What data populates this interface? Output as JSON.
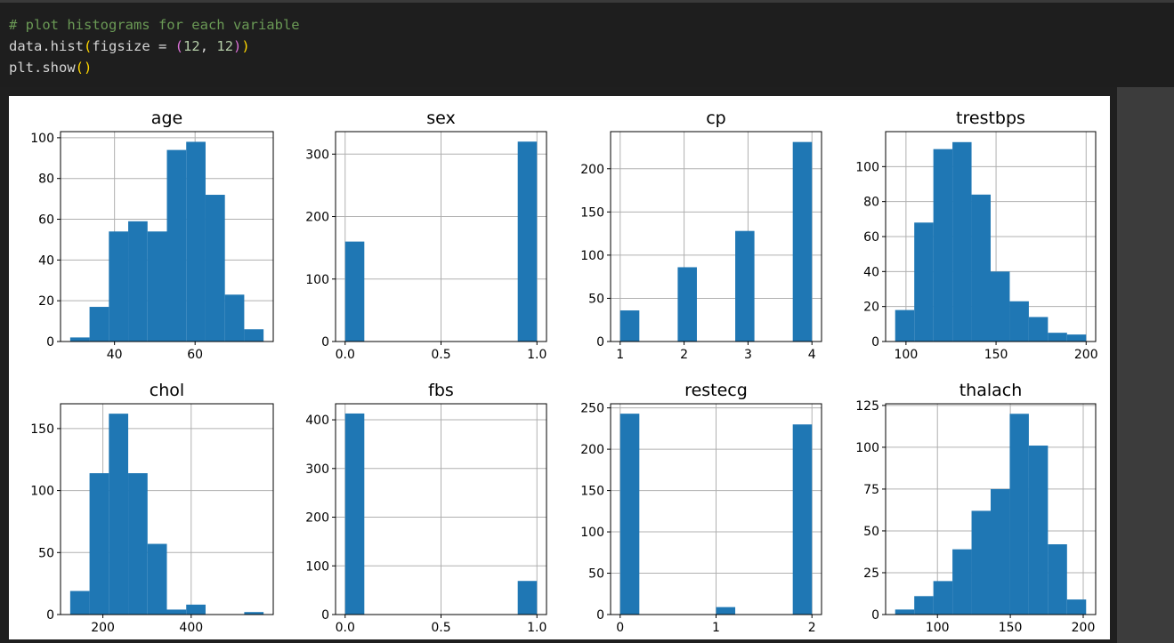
{
  "code": {
    "comment": "# plot histograms for each variable",
    "line2_prefix": "data.hist",
    "line2_open1": "(",
    "line2_mid": "figsize = ",
    "line2_open2": "(",
    "line2_a": "12",
    "line2_sep": ", ",
    "line2_b": "12",
    "line2_close2": ")",
    "line2_close1": ")",
    "line3_prefix": "plt.show",
    "line3_parens": "()"
  },
  "colors": {
    "bar": "#1f77b4",
    "grid": "#b0b0b0",
    "axis": "#000000"
  },
  "chart_data": [
    {
      "type": "bar",
      "title": "age",
      "bin_edges": [
        29,
        33.8,
        38.6,
        43.4,
        48.2,
        53,
        57.8,
        62.6,
        67.4,
        72.2,
        77
      ],
      "counts": [
        2,
        17,
        54,
        59,
        54,
        94,
        98,
        72,
        23,
        6
      ],
      "xlim": [
        26.6,
        79.4
      ],
      "ylim": [
        0,
        103
      ],
      "xticks": [
        40,
        60
      ],
      "xtick_labels": [
        "40",
        "60"
      ],
      "yticks": [
        0,
        20,
        40,
        60,
        80,
        100
      ],
      "ytick_labels": [
        "0",
        "20",
        "40",
        "60",
        "80",
        "100"
      ],
      "grid": true
    },
    {
      "type": "bar",
      "title": "sex",
      "bin_edges": [
        0,
        0.1,
        0.2,
        0.3,
        0.4,
        0.5,
        0.6,
        0.7,
        0.8,
        0.9,
        1.0
      ],
      "counts": [
        160,
        0,
        0,
        0,
        0,
        0,
        0,
        0,
        0,
        320
      ],
      "xlim": [
        -0.05,
        1.05
      ],
      "ylim": [
        0,
        336
      ],
      "xticks": [
        0,
        0.5,
        1
      ],
      "xtick_labels": [
        "0.0",
        "0.5",
        "1.0"
      ],
      "yticks": [
        0,
        100,
        200,
        300
      ],
      "ytick_labels": [
        "0",
        "100",
        "200",
        "300"
      ],
      "grid": true
    },
    {
      "type": "bar",
      "title": "cp",
      "bin_edges": [
        1,
        1.3,
        1.6,
        1.9,
        2.2,
        2.5,
        2.8,
        3.1,
        3.4,
        3.7,
        4.0
      ],
      "counts": [
        36,
        0,
        0,
        86,
        0,
        0,
        128,
        0,
        0,
        231
      ],
      "xlim": [
        0.85,
        4.15
      ],
      "ylim": [
        0,
        243
      ],
      "xticks": [
        1,
        2,
        3,
        4
      ],
      "xtick_labels": [
        "1",
        "2",
        "3",
        "4"
      ],
      "yticks": [
        0,
        50,
        100,
        150,
        200
      ],
      "ytick_labels": [
        "0",
        "50",
        "100",
        "150",
        "200"
      ],
      "grid": true
    },
    {
      "type": "bar",
      "title": "trestbps",
      "bin_edges": [
        94,
        104.6,
        115.2,
        125.8,
        136.4,
        147,
        157.6,
        168.2,
        178.8,
        189.4,
        200
      ],
      "counts": [
        18,
        68,
        110,
        114,
        84,
        40,
        23,
        14,
        5,
        4
      ],
      "xlim": [
        88.7,
        205.3
      ],
      "ylim": [
        0,
        120
      ],
      "xticks": [
        100,
        150,
        200
      ],
      "xtick_labels": [
        "100",
        "150",
        "200"
      ],
      "yticks": [
        0,
        20,
        40,
        60,
        80,
        100
      ],
      "ytick_labels": [
        "0",
        "20",
        "40",
        "60",
        "80",
        "100"
      ],
      "grid": true
    },
    {
      "type": "bar",
      "title": "chol",
      "bin_edges": [
        126,
        169.8,
        213.6,
        257.4,
        301.2,
        345,
        388.8,
        432.6,
        476.4,
        520.2,
        564
      ],
      "counts": [
        19,
        114,
        162,
        114,
        57,
        4,
        8,
        0,
        0,
        2
      ],
      "xlim": [
        104.1,
        585.9
      ],
      "ylim": [
        0,
        170
      ],
      "xticks": [
        200,
        400
      ],
      "xtick_labels": [
        "200",
        "400"
      ],
      "yticks": [
        0,
        50,
        100,
        150
      ],
      "ytick_labels": [
        "0",
        "50",
        "100",
        "150"
      ],
      "grid": true
    },
    {
      "type": "bar",
      "title": "fbs",
      "bin_edges": [
        0,
        0.1,
        0.2,
        0.3,
        0.4,
        0.5,
        0.6,
        0.7,
        0.8,
        0.9,
        1.0
      ],
      "counts": [
        413,
        0,
        0,
        0,
        0,
        0,
        0,
        0,
        0,
        69
      ],
      "xlim": [
        -0.05,
        1.05
      ],
      "ylim": [
        0,
        433
      ],
      "xticks": [
        0,
        0.5,
        1
      ],
      "xtick_labels": [
        "0.0",
        "0.5",
        "1.0"
      ],
      "yticks": [
        0,
        100,
        200,
        300,
        400
      ],
      "ytick_labels": [
        "0",
        "100",
        "200",
        "300",
        "400"
      ],
      "grid": true
    },
    {
      "type": "bar",
      "title": "restecg",
      "bin_edges": [
        0,
        0.2,
        0.4,
        0.6,
        0.8,
        1.0,
        1.2,
        1.4,
        1.6,
        1.8,
        2.0
      ],
      "counts": [
        243,
        0,
        0,
        0,
        0,
        9,
        0,
        0,
        0,
        230
      ],
      "xlim": [
        -0.1,
        2.1
      ],
      "ylim": [
        0,
        255
      ],
      "xticks": [
        0,
        1,
        2
      ],
      "xtick_labels": [
        "0",
        "1",
        "2"
      ],
      "yticks": [
        0,
        50,
        100,
        150,
        200,
        250
      ],
      "ytick_labels": [
        "0",
        "50",
        "100",
        "150",
        "200",
        "250"
      ],
      "grid": true
    },
    {
      "type": "bar",
      "title": "thalach",
      "bin_edges": [
        71,
        84.1,
        97.2,
        110.3,
        123.4,
        136.5,
        149.6,
        162.7,
        175.8,
        188.9,
        202
      ],
      "counts": [
        3,
        11,
        20,
        39,
        62,
        75,
        120,
        101,
        42,
        9
      ],
      "xlim": [
        64.45,
        208.55
      ],
      "ylim": [
        0,
        126
      ],
      "xticks": [
        100,
        150,
        200
      ],
      "xtick_labels": [
        "100",
        "150",
        "200"
      ],
      "yticks": [
        0,
        25,
        50,
        75,
        100,
        125
      ],
      "ytick_labels": [
        "0",
        "25",
        "50",
        "75",
        "100",
        "125"
      ],
      "grid": true
    }
  ]
}
